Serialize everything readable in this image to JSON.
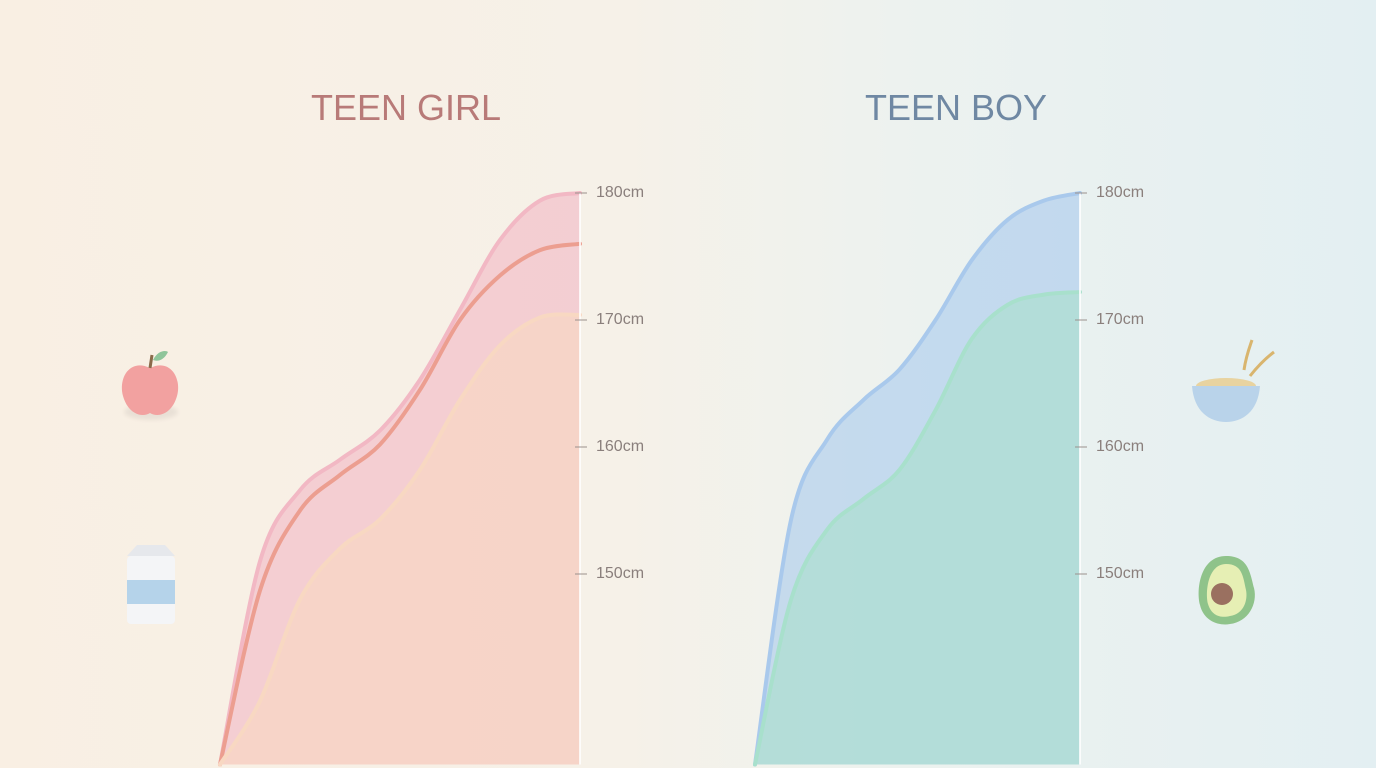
{
  "chart_data": [
    {
      "type": "area",
      "title": "TEEN GIRL",
      "title_color": "#b87a78",
      "categories": [
        null,
        null,
        null,
        null,
        null,
        null,
        null,
        null,
        null,
        null
      ],
      "series": [
        {
          "color": "#f2b8c4",
          "fill": true,
          "values": [
            135,
            151,
            156.6,
            159,
            161.3,
            165.3,
            170.8,
            176.3,
            179.4,
            180
          ]
        },
        {
          "color": "#ec9e90",
          "fill": false,
          "values": [
            135,
            148.7,
            155,
            157.8,
            160.2,
            164.5,
            170,
            173.5,
            175.5,
            176
          ]
        },
        {
          "color": "#f8d8c2",
          "fill": true,
          "values": [
            135,
            140,
            148,
            152,
            154.3,
            158.2,
            163.7,
            168,
            170.2,
            170.4
          ]
        }
      ],
      "ylim": [
        135,
        180
      ],
      "yticks": [
        {
          "value": 150,
          "label": "150cm"
        },
        {
          "value": 160,
          "label": "160cm"
        },
        {
          "value": 170,
          "label": "170cm"
        },
        {
          "value": 180,
          "label": "180cm"
        }
      ]
    },
    {
      "type": "area",
      "title": "TEEN BOY",
      "title_color": "#6f88a3",
      "categories": [
        null,
        null,
        null,
        null,
        null,
        null,
        null,
        null,
        null,
        null
      ],
      "series": [
        {
          "color": "#a9c9ec",
          "fill": true,
          "values": [
            135,
            154.3,
            160.6,
            163.7,
            166.1,
            170,
            174.7,
            177.9,
            179.4,
            180
          ]
        },
        {
          "color": "#a8e0cc",
          "fill": true,
          "values": [
            135,
            148,
            153.5,
            155.9,
            158.2,
            162.9,
            168.5,
            171.2,
            172,
            172.2
          ]
        }
      ],
      "ylim": [
        135,
        180
      ],
      "yticks": [
        {
          "value": 150,
          "label": "150cm"
        },
        {
          "value": 160,
          "label": "160cm"
        },
        {
          "value": 170,
          "label": "170cm"
        },
        {
          "value": 180,
          "label": "180cm"
        }
      ]
    }
  ]
}
